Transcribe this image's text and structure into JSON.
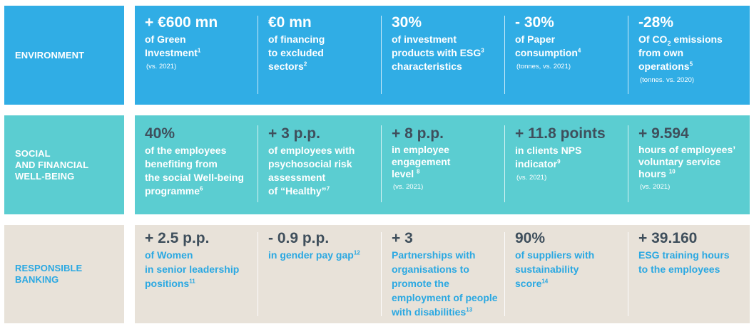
{
  "colors": {
    "env_bg": "#30ADE5",
    "soc_bg": "#5BCDD1",
    "bank_bg": "#E8E2D9",
    "heading_dark": "#3F4F5C",
    "white": "#FFFFFF",
    "accent_blue": "#2AA8E2"
  },
  "rows": [
    {
      "label": [
        "ENVIRONMENT"
      ],
      "cells": [
        {
          "value": "+ €600 mn",
          "desc_parts": [
            "of Green",
            "Investment"
          ],
          "sup": "1",
          "note": "(vs. 2021)"
        },
        {
          "value": "€0 mn",
          "desc_parts": [
            "of financing",
            "to excluded",
            "sectors"
          ],
          "sup": "2",
          "note": ""
        },
        {
          "value": "30%",
          "desc_parts": [
            "of investment",
            "products with ESG",
            "characteristics"
          ],
          "sup": "3",
          "note": ""
        },
        {
          "value": "- 30%",
          "desc_parts": [
            "of Paper",
            "consumption"
          ],
          "sup": "4",
          "note": "(tonnes, vs. 2021)"
        },
        {
          "value": "-28%",
          "desc_parts": [
            "Of CO",
            "2",
            " emissions",
            "from own",
            "operations"
          ],
          "sup": "5",
          "note": "(tonnes. vs. 2020)"
        }
      ]
    },
    {
      "label": [
        "SOCIAL",
        "AND FINANCIAL",
        "WELL-BEING"
      ],
      "cells": [
        {
          "value": "40%",
          "desc_parts": [
            "of the employees",
            "benefiting from",
            "the social Well-being",
            "programme"
          ],
          "sup": "6",
          "note": ""
        },
        {
          "value": "+ 3 p.p.",
          "desc_parts": [
            "of employees with",
            "psychosocial risk",
            "assessment",
            "of “Healthy”"
          ],
          "sup": "7",
          "note": ""
        },
        {
          "value": "+ 8 p.p.",
          "desc_parts": [
            "in employee",
            "engagement",
            "level"
          ],
          "sup": "8",
          "note": "(vs. 2021)"
        },
        {
          "value": "+ 11.8 points",
          "desc_parts": [
            "in clients NPS",
            " indicator"
          ],
          "sup": "9",
          "note": "(vs. 2021)"
        },
        {
          "value": "+ 9.594",
          "desc_parts": [
            "hours of employees’",
            "voluntary service",
            "hours"
          ],
          "sup": "10",
          "note": "(vs. 2021)"
        }
      ]
    },
    {
      "label": [
        "RESPONSIBLE",
        "BANKING"
      ],
      "cells": [
        {
          "value": "+ 2.5 p.p.",
          "desc_parts": [
            "of Women",
            "in senior leadership",
            "positions"
          ],
          "sup": "11",
          "note": ""
        },
        {
          "value": "- 0.9 p.p.",
          "desc_parts": [
            "in gender pay gap"
          ],
          "sup": "12",
          "note": ""
        },
        {
          "value": "+ 3",
          "desc_parts": [
            "Partnerships with",
            "organisations to",
            " promote the",
            "employment of people",
            "with disabilities"
          ],
          "sup": "13",
          "note": ""
        },
        {
          "value": "90%",
          "desc_parts": [
            "of suppliers with",
            "sustainability",
            "score"
          ],
          "sup": "14",
          "note": ""
        },
        {
          "value": "+ 39.160",
          "desc_parts": [
            "ESG training hours",
            "to the employees"
          ],
          "sup": "",
          "note": ""
        }
      ]
    }
  ]
}
